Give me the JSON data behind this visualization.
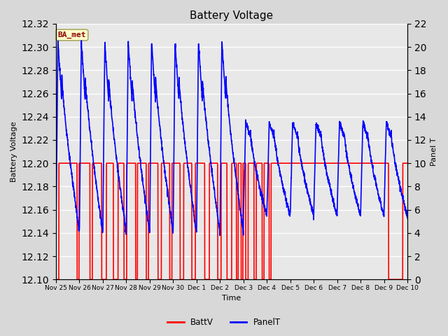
{
  "title": "Battery Voltage",
  "xlabel": "Time",
  "ylabel_left": "Battery Voltage",
  "ylabel_right": "Panel T",
  "ylim_left": [
    12.1,
    12.32
  ],
  "ylim_right": [
    0,
    22
  ],
  "yticks_left": [
    12.1,
    12.12,
    12.14,
    12.16,
    12.18,
    12.2,
    12.22,
    12.24,
    12.26,
    12.28,
    12.3,
    12.32
  ],
  "yticks_right": [
    0,
    2,
    4,
    6,
    8,
    10,
    12,
    14,
    16,
    18,
    20,
    22
  ],
  "background_color": "#d8d8d8",
  "plot_bg_color": "#e8e8e8",
  "grid_color": "white",
  "annotation_text": "BA_met",
  "annotation_bg": "#ffffcc",
  "annotation_border": "#aaaa66",
  "batt_color": "red",
  "panel_color": "blue",
  "batt_linewidth": 1.2,
  "panel_linewidth": 1.2,
  "x_tick_labels": [
    "Nov 25",
    "Nov 26",
    "Nov 27",
    "Nov 28",
    "Nov 29",
    "Nov 30",
    "Dec 1",
    "Dec 2",
    "Dec 3",
    "Dec 4",
    "Dec 5",
    "Dec 6",
    "Dec 7",
    "Dec 8",
    "Dec 9",
    "Dec 10"
  ],
  "num_days": 15
}
